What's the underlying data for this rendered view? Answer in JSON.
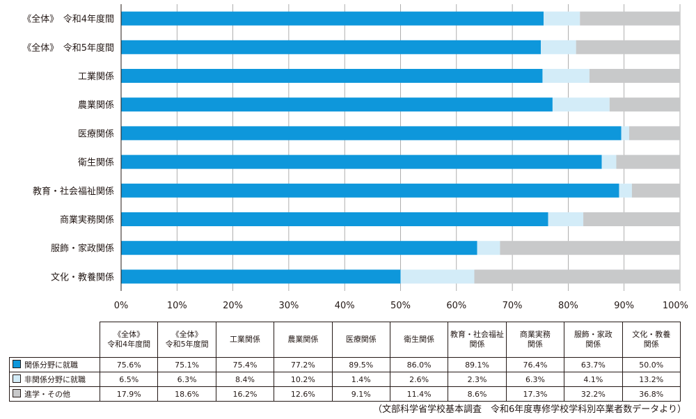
{
  "colors": {
    "related": "#0e97db",
    "unrelated": "#d3ecf8",
    "other": "#c8c9ca"
  },
  "chart_data": {
    "type": "bar",
    "orientation": "horizontal",
    "stacked": true,
    "categories": [
      "《全体》　令和4年度間",
      "《全体》　令和5年度間",
      "工業関係",
      "農業関係",
      "医療関係",
      "衛生関係",
      "教育・社会福祉関係",
      "商業実務関係",
      "服飾・家政関係",
      "文化・教養関係"
    ],
    "series": [
      {
        "name": "関係分野に就職",
        "values": [
          75.6,
          75.1,
          75.4,
          77.2,
          89.5,
          86.0,
          89.1,
          76.4,
          63.7,
          50.0
        ]
      },
      {
        "name": "非関係分野に就職",
        "values": [
          6.5,
          6.3,
          8.4,
          10.2,
          1.4,
          2.6,
          2.3,
          6.3,
          4.1,
          13.2
        ]
      },
      {
        "name": "進学・その他",
        "values": [
          17.9,
          18.6,
          16.2,
          12.6,
          9.1,
          11.4,
          8.6,
          17.3,
          32.2,
          36.8
        ]
      }
    ],
    "xlim": [
      0,
      100
    ],
    "x_ticks": [
      "0%",
      "10%",
      "20%",
      "30%",
      "40%",
      "50%",
      "60%",
      "70%",
      "80%",
      "90%",
      "100%"
    ],
    "grid": true
  },
  "table": {
    "headers": [
      "《全体》\n令和4年度間",
      "《全体》\n令和5年度間",
      "工業関係",
      "農業関係",
      "医療関係",
      "衛生関係",
      "教育・社会福祉\n関係",
      "商業実務\n関係",
      "服飾・家政\n関係",
      "文化・教養\n関係"
    ],
    "rows": [
      {
        "label": "関係分野に就職",
        "values": [
          "75.6%",
          "75.1%",
          "75.4%",
          "77.2%",
          "89.5%",
          "86.0%",
          "89.1%",
          "76.4%",
          "63.7%",
          "50.0%"
        ]
      },
      {
        "label": "非関係分野に就職",
        "values": [
          "6.5%",
          "6.3%",
          "8.4%",
          "10.2%",
          "1.4%",
          "2.6%",
          "2.3%",
          "6.3%",
          "4.1%",
          "13.2%"
        ]
      },
      {
        "label": "進学・その他",
        "values": [
          "17.9%",
          "18.6%",
          "16.2%",
          "12.6%",
          "9.1%",
          "11.4%",
          "8.6%",
          "17.3%",
          "32.2%",
          "36.8%"
        ]
      }
    ]
  },
  "source": "（文部科学省学校基本調査　令和6年度専修学校学科別卒業者数データより）"
}
